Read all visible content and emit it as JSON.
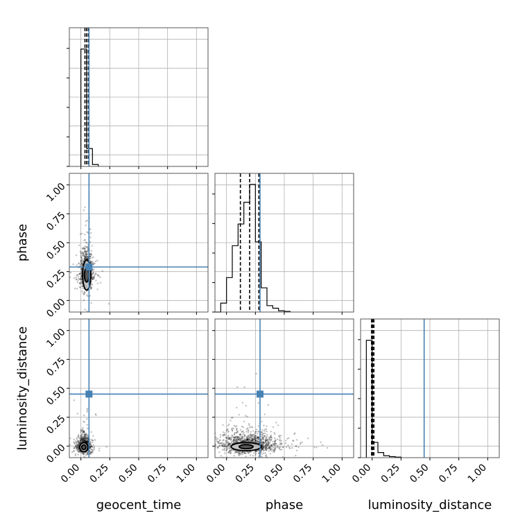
{
  "chart_data": {
    "type": "corner",
    "parameters": [
      "geocent_time",
      "phase",
      "luminosity_distance"
    ],
    "axis_range": [
      -0.1,
      1.1
    ],
    "ticks": [
      0.0,
      0.25,
      0.5,
      0.75,
      1.0
    ],
    "tick_labels": [
      "0.00",
      "0.25",
      "0.50",
      "0.75",
      "1.00"
    ],
    "grid": true,
    "truth_color": "#4682b4",
    "truths": {
      "geocent_time": 0.07,
      "phase": 0.29,
      "luminosity_distance": 0.45
    },
    "histograms": [
      {
        "param": "geocent_time",
        "bins": [
          [
            0.0,
            0.05,
            0.92
          ],
          [
            0.05,
            0.1,
            0.14
          ],
          [
            0.1,
            0.15,
            0.015
          ]
        ],
        "quantiles": [
          0.035,
          0.05,
          0.065
        ]
      },
      {
        "param": "phase",
        "bins": [
          [
            -0.1,
            -0.05,
            0.0
          ],
          [
            -0.05,
            0.0,
            0.07
          ],
          [
            0.0,
            0.05,
            0.27
          ],
          [
            0.05,
            0.1,
            0.52
          ],
          [
            0.1,
            0.15,
            0.69
          ],
          [
            0.15,
            0.2,
            0.86
          ],
          [
            0.2,
            0.25,
            1.0
          ],
          [
            0.25,
            0.3,
            0.55
          ],
          [
            0.3,
            0.35,
            0.19
          ],
          [
            0.35,
            0.4,
            0.05
          ],
          [
            0.4,
            0.45,
            0.03
          ],
          [
            0.45,
            0.5,
            0.01
          ],
          [
            0.5,
            0.55,
            0.005
          ]
        ],
        "quantiles": [
          0.12,
          0.2,
          0.28
        ]
      },
      {
        "param": "luminosity_distance",
        "bins": [
          [
            -0.05,
            0.0,
            0.92
          ],
          [
            0.0,
            0.05,
            0.12
          ],
          [
            0.05,
            0.1,
            0.04
          ],
          [
            0.1,
            0.15,
            0.015
          ],
          [
            0.15,
            0.2,
            0.008
          ],
          [
            0.2,
            0.25,
            0.004
          ]
        ],
        "quantiles": [
          -0.005,
          0.005,
          0.015
        ]
      }
    ],
    "scatter_clouds": [
      {
        "x": "geocent_time",
        "y": "phase",
        "cx": 0.05,
        "cy": 0.24,
        "sx": 0.025,
        "sy": 0.1,
        "n": 900,
        "contour": {
          "cx": 0.05,
          "cy": 0.22,
          "rx": 0.035,
          "ry": 0.13,
          "inner_rx": 0.02,
          "inner_ry": 0.06
        }
      },
      {
        "x": "geocent_time",
        "y": "luminosity_distance",
        "cx": 0.03,
        "cy": 0.0,
        "sx": 0.03,
        "sy": 0.05,
        "n": 700,
        "contour": {
          "cx": 0.025,
          "cy": -0.01,
          "rx": 0.035,
          "ry": 0.04,
          "inner_rx": 0.018,
          "inner_ry": 0.02
        }
      },
      {
        "x": "phase",
        "y": "luminosity_distance",
        "cx": 0.2,
        "cy": 0.01,
        "sx": 0.12,
        "sy": 0.06,
        "n": 1200,
        "contour": {
          "cx": 0.17,
          "cy": -0.005,
          "rx": 0.13,
          "ry": 0.035,
          "inner_rx": 0.06,
          "inner_ry": 0.018
        }
      }
    ]
  }
}
